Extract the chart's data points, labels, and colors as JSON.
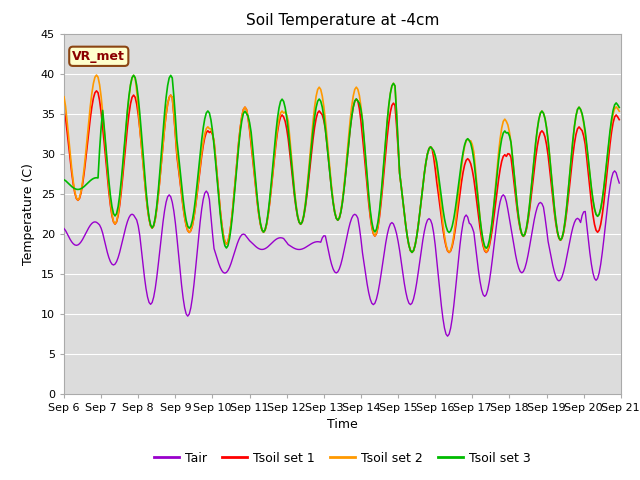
{
  "title": "Soil Temperature at -4cm",
  "xlabel": "Time",
  "ylabel": "Temperature (C)",
  "ylim": [
    0,
    45
  ],
  "xtick_labels": [
    "Sep 6",
    "Sep 7",
    "Sep 8",
    "Sep 9",
    "Sep 10",
    "Sep 11",
    "Sep 12",
    "Sep 13",
    "Sep 14",
    "Sep 15",
    "Sep 16",
    "Sep 17",
    "Sep 18",
    "Sep 19",
    "Sep 20",
    "Sep 21"
  ],
  "annotation": "VR_met",
  "background_color": "#dcdcdc",
  "outer_bg": "#ffffff",
  "line_colors": {
    "Tair": "#9900cc",
    "Tsoil set 1": "#ff0000",
    "Tsoil set 2": "#ff9900",
    "Tsoil set 3": "#00bb00"
  },
  "line_widths": {
    "Tair": 1.0,
    "Tsoil set 1": 1.2,
    "Tsoil set 2": 1.2,
    "Tsoil set 3": 1.2
  },
  "legend_colors": [
    "#9900cc",
    "#ff0000",
    "#ff9900",
    "#00bb00"
  ],
  "legend_labels": [
    "Tair",
    "Tsoil set 1",
    "Tsoil set 2",
    "Tsoil set 3"
  ],
  "yticks": [
    0,
    5,
    10,
    15,
    20,
    25,
    30,
    35,
    40,
    45
  ],
  "grid_color": "#ffffff",
  "title_fontsize": 11,
  "axis_fontsize": 9,
  "tick_fontsize": 8
}
